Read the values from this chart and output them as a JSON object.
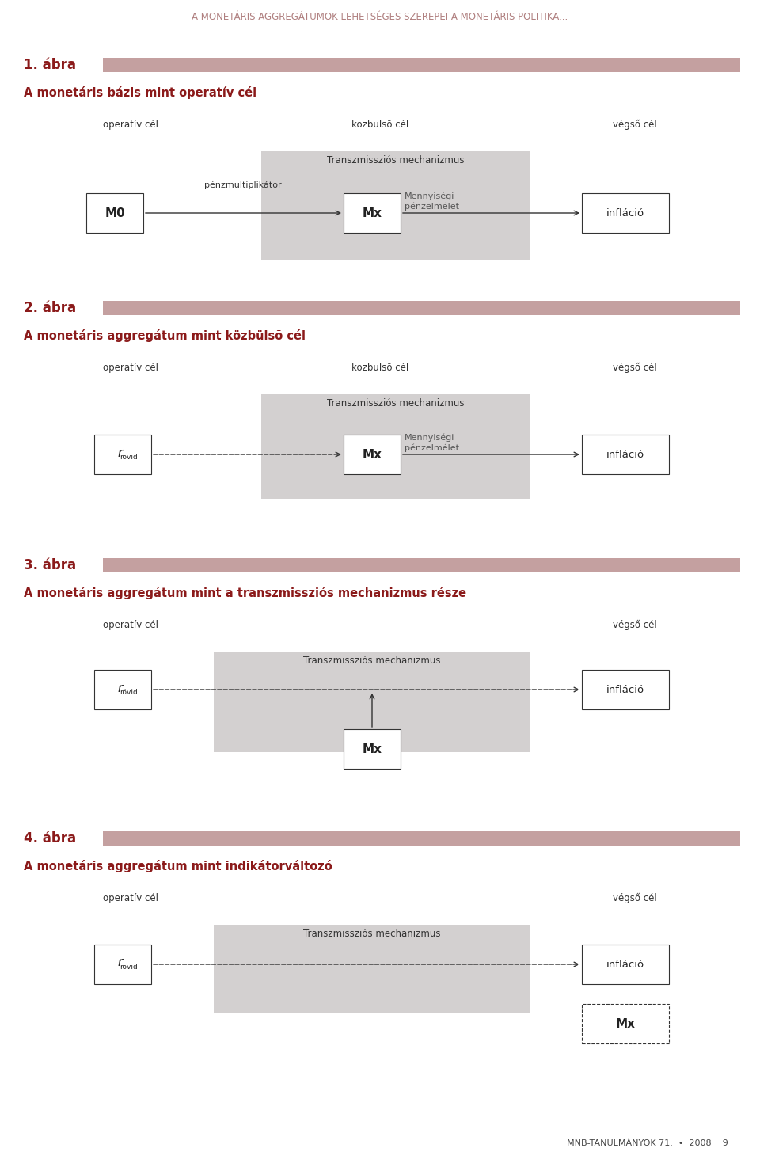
{
  "page_title": "A MONETÁRIS AGGREGÁTUMOK LEHETSÉGES SZEREPEI A MONETÁRIS POLITIKA...",
  "page_title_color": "#b08080",
  "footer": "MNB-TANULMÁNYOK 71.  •  2008    9",
  "background_color": "#ffffff",
  "dark_red": "#8b1a1a",
  "gray_box_color": "#d3d0d0",
  "section_bar_color": "#c4a0a0",
  "diagrams": [
    {
      "num": "1. ábra",
      "title_main": "A monetáris bázis mint operatív cél",
      "label_left": "operatív cél",
      "label_mid": "közbülsõ cél",
      "label_right": "végső cél",
      "gray_label": "Transzmissziós mechanizmus",
      "type": "diagram1"
    },
    {
      "num": "2. ábra",
      "title_main": "A monetáris aggregátum mint közbülsõ cél",
      "label_left": "operatív cél",
      "label_mid": "közbülsõ cél",
      "label_right": "végső cél",
      "gray_label": "Transzmissziós mechanizmus",
      "type": "diagram2"
    },
    {
      "num": "3. ábra",
      "title_main": "A monetáris aggregátum mint a transzmissziós mechanizmus része",
      "label_left": "operatív cél",
      "label_mid": null,
      "label_right": "végső cél",
      "gray_label": "Transzmissziós mechanizmus",
      "type": "diagram3"
    },
    {
      "num": "4. ábra",
      "title_main": "A monetáris aggregátum mint indikátorváltozó",
      "label_left": "operatív cél",
      "label_mid": null,
      "label_right": "végső cél",
      "gray_label": "Transzmissziós mechanizmus",
      "type": "diagram4"
    }
  ]
}
